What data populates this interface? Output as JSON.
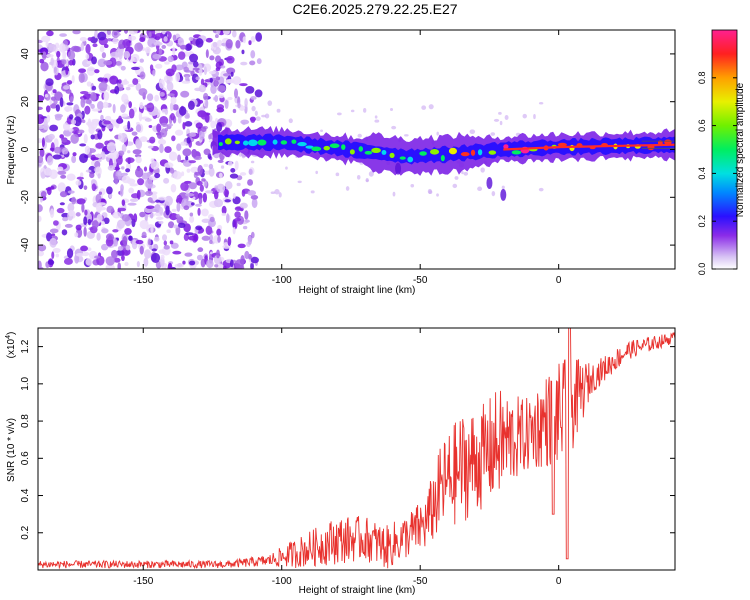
{
  "title": "C2E6.2025.279.22.25.E27",
  "chart_data": [
    {
      "type": "heatmap",
      "title": "C2E6.2025.279.22.25.E27",
      "xlabel": "Height of straight line (km)",
      "ylabel": "Frequency (Hz)",
      "xlim": [
        -188,
        42
      ],
      "ylim": [
        -50,
        50
      ],
      "xticks": [
        -150,
        -100,
        -50,
        0
      ],
      "yticks": [
        -40,
        -20,
        0,
        20,
        40
      ],
      "colorbar": {
        "label": "Normalized spectral amplitude",
        "range": [
          0,
          1
        ],
        "ticks": [
          "0.0",
          "0.2",
          "0.4",
          "0.6",
          "0.8"
        ]
      },
      "noise_region": {
        "x_start": -188,
        "x_end": -108,
        "freq_span": [
          -50,
          50
        ]
      },
      "ridge": {
        "x_start": -125,
        "x_end": 42,
        "center_hz": [
          {
            "x": -125,
            "y": 3
          },
          {
            "x": -100,
            "y": 3
          },
          {
            "x": -75,
            "y": 0
          },
          {
            "x": -55,
            "y": -3
          },
          {
            "x": -40,
            "y": -2
          },
          {
            "x": -20,
            "y": 0
          },
          {
            "x": 0,
            "y": 1
          },
          {
            "x": 42,
            "y": 2
          }
        ]
      }
    },
    {
      "type": "line",
      "xlabel": "Height of straight line (km)",
      "ylabel": "SNR (10 * v/v)",
      "multiplier_label": "(x10",
      "multiplier_exp": "4",
      "xlim": [
        -188,
        42
      ],
      "ylim": [
        0,
        1.3
      ],
      "xticks": [
        -150,
        -100,
        -50,
        0
      ],
      "yticks": [
        0.2,
        0.4,
        0.6,
        0.8,
        1.0,
        1.2
      ],
      "ytick_labels": [
        "0.2",
        "0.4",
        "0.6",
        "0.8",
        "1.0",
        "1.2"
      ],
      "series": [
        {
          "name": "SNR",
          "color": "#e8322e",
          "envelope": [
            {
              "x": -188,
              "base": 0.03,
              "amp": 0.02
            },
            {
              "x": -120,
              "base": 0.03,
              "amp": 0.02
            },
            {
              "x": -105,
              "base": 0.05,
              "amp": 0.03
            },
            {
              "x": -95,
              "base": 0.09,
              "amp": 0.08
            },
            {
              "x": -80,
              "base": 0.16,
              "amp": 0.13
            },
            {
              "x": -70,
              "base": 0.17,
              "amp": 0.12
            },
            {
              "x": -62,
              "base": 0.12,
              "amp": 0.12
            },
            {
              "x": -55,
              "base": 0.18,
              "amp": 0.12
            },
            {
              "x": -48,
              "base": 0.25,
              "amp": 0.15
            },
            {
              "x": -42,
              "base": 0.45,
              "amp": 0.25
            },
            {
              "x": -35,
              "base": 0.55,
              "amp": 0.3
            },
            {
              "x": -28,
              "base": 0.6,
              "amp": 0.28
            },
            {
              "x": -22,
              "base": 0.68,
              "amp": 0.3
            },
            {
              "x": -12,
              "base": 0.72,
              "amp": 0.2
            },
            {
              "x": -5,
              "base": 0.8,
              "amp": 0.25
            },
            {
              "x": 3,
              "base": 0.85,
              "amp": 0.3
            },
            {
              "x": 12,
              "base": 1.03,
              "amp": 0.08
            },
            {
              "x": 25,
              "base": 1.18,
              "amp": 0.05
            },
            {
              "x": 42,
              "base": 1.25,
              "amp": 0.03
            }
          ],
          "notable_points": [
            {
              "x": -2,
              "y": 0.3
            },
            {
              "x": 3,
              "y": 0.06
            },
            {
              "x": 4,
              "y": 1.3
            }
          ]
        }
      ]
    }
  ]
}
